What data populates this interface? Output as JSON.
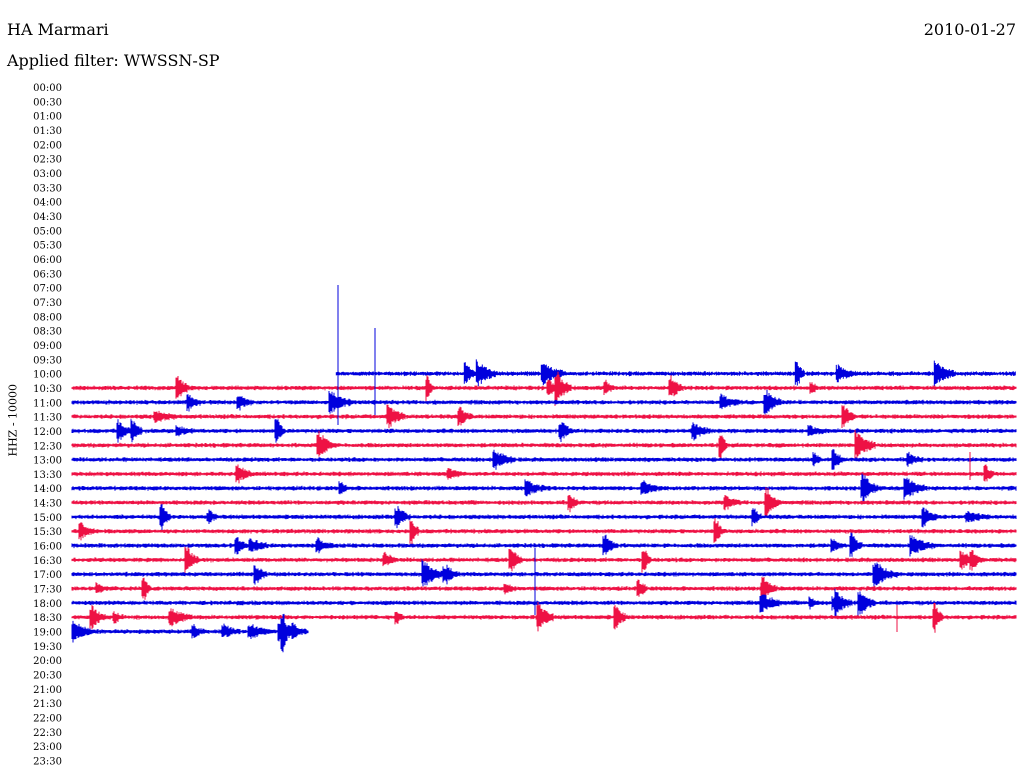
{
  "header": {
    "station": "HA Marmari",
    "filter": "Applied filter: WWSSN-SP",
    "date": "2010-01-27"
  },
  "axis": {
    "ylabel": "HHZ - 10000"
  },
  "colors": {
    "even": "#0000dd",
    "odd": "#ee1144"
  },
  "chart_data": {
    "type": "line",
    "title": "",
    "ylabel": "HHZ - 10000",
    "row_labels": [
      "00:00",
      "00:30",
      "01:00",
      "01:30",
      "02:00",
      "02:30",
      "03:00",
      "03:30",
      "04:00",
      "04:30",
      "05:00",
      "05:30",
      "06:00",
      "06:30",
      "07:00",
      "07:30",
      "08:00",
      "08:30",
      "09:00",
      "09:30",
      "10:00",
      "10:30",
      "11:00",
      "11:30",
      "12:00",
      "12:30",
      "13:00",
      "13:30",
      "14:00",
      "14:30",
      "15:00",
      "15:30",
      "16:00",
      "16:30",
      "17:00",
      "17:30",
      "18:00",
      "18:30",
      "19:00",
      "19:30",
      "20:00",
      "20:30",
      "21:00",
      "21:30",
      "22:00",
      "22:30",
      "23:00",
      "23:30"
    ],
    "trace_start": "10:00",
    "trace_end": "19:00",
    "first_trace_start_fraction": 0.28,
    "last_trace_end_fraction": 0.25,
    "x_range_minutes": [
      0,
      30
    ]
  }
}
